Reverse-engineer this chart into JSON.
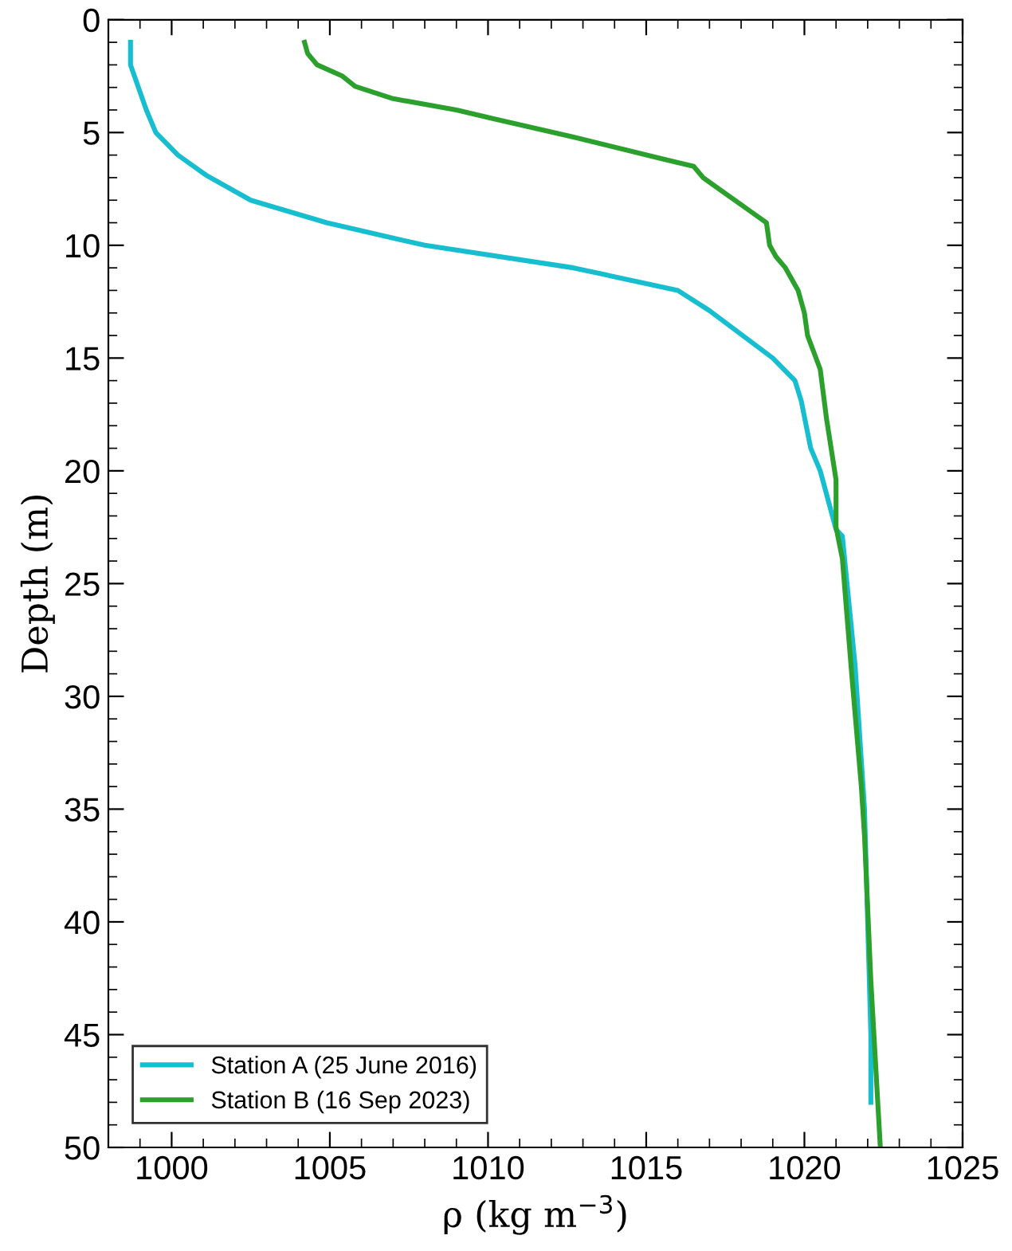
{
  "chart_data": {
    "type": "line",
    "xlabel": "ρ (kg m$^{−3}$)",
    "ylabel": "Depth (m)",
    "xlim": [
      998,
      1025
    ],
    "xticks": [
      1000,
      1005,
      1010,
      1015,
      1020,
      1025
    ],
    "ylim": [
      50,
      0
    ],
    "yticks": [
      0,
      5,
      10,
      15,
      20,
      25,
      30,
      35,
      40,
      45,
      50
    ],
    "grid": false,
    "legend": "bottom left",
    "line_style": "solid",
    "marker": "none",
    "series": [
      {
        "name": "Station A (25 June 2016)",
        "color": "#17becf",
        "x": [
          998.7,
          998.7,
          999.2,
          999.5,
          1000.2,
          1001.1,
          1002.5,
          1004.9,
          1008.0,
          1012.7,
          1016.0,
          1017.0,
          1019.0,
          1019.7,
          1019.9,
          1020.2,
          1020.5,
          1021.0,
          1021.2,
          1021.6,
          1021.9,
          1022.0,
          1022.1,
          1022.1
        ],
        "values": [
          1,
          2,
          4,
          5,
          6,
          6.9,
          8,
          9,
          10,
          11,
          12,
          12.9,
          15,
          16,
          16.9,
          19,
          20,
          22.6,
          22.9,
          28.6,
          35,
          40,
          45,
          48
        ]
      },
      {
        "name": "Station B (16 Sep 2023)",
        "color": "#2ca02c",
        "x": [
          1004.2,
          1004.3,
          1004.6,
          1005.4,
          1005.8,
          1007.0,
          1009.0,
          1010.2,
          1012.7,
          1015.6,
          1016.5,
          1016.8,
          1017.4,
          1018.3,
          1018.8,
          1018.9,
          1019.1,
          1019.4,
          1019.8,
          1020.0,
          1020.1,
          1020.5,
          1020.7,
          1021.0,
          1021.0,
          1021.2,
          1021.5,
          1021.8,
          1021.9,
          1022.1,
          1022.4
        ],
        "values": [
          1,
          1.5,
          2,
          2.5,
          2.95,
          3.5,
          4,
          4.4,
          5.2,
          6.2,
          6.5,
          7,
          7.6,
          8.5,
          9,
          10,
          10.5,
          11,
          12,
          13,
          14,
          15.5,
          17.7,
          20.4,
          22.5,
          23.9,
          29.1,
          34,
          36.2,
          42.6,
          50
        ]
      }
    ]
  }
}
